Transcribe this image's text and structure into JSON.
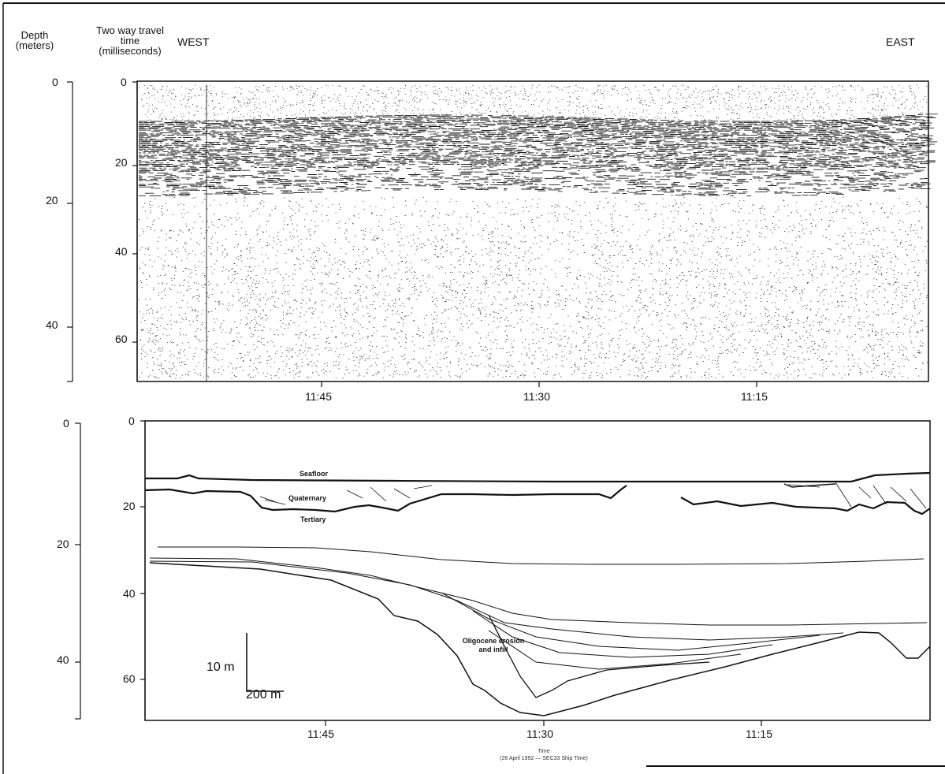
{
  "header": {
    "depth_label": "Depth (meters)",
    "twt_label": "Two way travel time (milliseconds)",
    "west": "WEST",
    "east": "EAST"
  },
  "top_panel": {
    "depth_ticks": [
      "0",
      "20",
      "40"
    ],
    "twt_ticks": [
      "0",
      "20",
      "40",
      "60"
    ],
    "time_ticks": [
      "11:45",
      "11:30",
      "11:15"
    ]
  },
  "bottom_panel": {
    "depth_ticks": [
      "0",
      "20",
      "40"
    ],
    "twt_ticks": [
      "0",
      "20",
      "40",
      "60"
    ],
    "time_ticks": [
      "11:45",
      "11:30",
      "11:15"
    ],
    "labels": {
      "seafloor": "Seafloor",
      "quaternary": "Quaternary",
      "tertiary": "Tertiary",
      "oligocene": "Oligocene erosion and infill"
    },
    "scale_vertical": "10 m",
    "scale_horizontal": "200 m"
  },
  "caption": {
    "line1": "Time",
    "line2": "(26 April 1992 — SEC33 Ship Time)"
  },
  "colors": {
    "ink": "#111111",
    "paper": "#ffffff"
  }
}
